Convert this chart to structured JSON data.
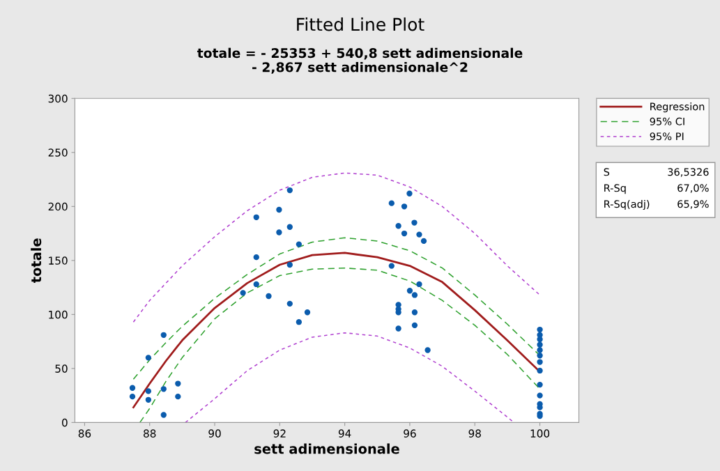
{
  "chart_data": {
    "type": "scatter",
    "title": "Fitted Line Plot",
    "subtitle": "totale = - 25353 + 540,8 sett adimensionale\n- 2,867 sett adimensionale^2",
    "xlabel": "sett adimensionale",
    "ylabel": "totale",
    "xlim": [
      85.7,
      101.2
    ],
    "ylim": [
      0,
      300
    ],
    "xticks": [
      86,
      88,
      90,
      92,
      94,
      96,
      98,
      100
    ],
    "yticks": [
      0,
      50,
      100,
      150,
      200,
      250,
      300
    ],
    "grid": false,
    "legend": "right",
    "annotations": [
      "S\t36,5326",
      "R-Sq\t67,0%",
      "R-Sq(adj)\t65,9%"
    ],
    "series": [
      {
        "marker": "circle",
        "color": "#0b5cad",
        "x": [
          87.47,
          87.47,
          87.96,
          87.96,
          87.96,
          88.43,
          88.43,
          88.43,
          88.87,
          88.87,
          90.87,
          91.28,
          91.28,
          91.28,
          91.66,
          91.98,
          91.98,
          92.31,
          92.31,
          92.31,
          92.31,
          92.59,
          92.59,
          92.85,
          95.44,
          95.44,
          95.65,
          95.65,
          95.65,
          95.65,
          95.65,
          95.83,
          95.83,
          95.99,
          96.0,
          96.14,
          96.15,
          96.15,
          96.15,
          96.29,
          96.29,
          96.43,
          96.55,
          100,
          100,
          100,
          100,
          100,
          100,
          100,
          100,
          100,
          100,
          100,
          100,
          100,
          100
        ],
        "values": [
          32,
          24,
          60,
          29,
          21,
          81,
          31,
          7,
          36,
          24,
          120,
          190,
          153,
          128,
          117,
          197,
          176,
          215,
          181,
          146,
          110,
          165,
          93,
          102,
          203,
          145,
          182,
          109,
          105,
          102,
          87,
          200,
          175,
          212,
          122,
          185,
          118,
          102,
          90,
          174,
          128,
          168,
          67,
          86,
          81,
          77,
          72,
          67,
          62,
          56,
          48,
          35,
          25,
          17,
          14,
          8,
          6
        ]
      },
      {
        "type": "line",
        "name": "Regression",
        "color": "#a01c1c",
        "line_style": "solid",
        "x": [
          87.5,
          88,
          88.5,
          89,
          90,
          91,
          92,
          93,
          94,
          95,
          96,
          97,
          98,
          99,
          100
        ],
        "values": [
          14,
          36,
          57,
          76,
          106,
          129,
          146,
          155,
          157,
          153,
          145,
          130,
          104,
          76,
          47
        ]
      },
      {
        "type": "line",
        "name": "95% CI",
        "color": "#2ca02c",
        "line_style": "dashed",
        "x": [
          87.5,
          88,
          88.5,
          89,
          90,
          91,
          92,
          93,
          94,
          95,
          96,
          97,
          98,
          99,
          100
        ],
        "values": [
          40,
          58,
          74,
          89,
          115,
          137,
          156,
          167,
          171,
          168,
          159,
          143,
          118,
          91,
          62
        ]
      },
      {
        "type": "line",
        "color": "#2ca02c",
        "line_style": "dashed",
        "x": [
          87.7,
          88,
          88.5,
          89,
          90,
          91,
          92,
          93,
          94,
          95,
          96,
          97,
          98,
          99,
          100
        ],
        "values": [
          0,
          13,
          38,
          60,
          96,
          120,
          136,
          142,
          143,
          141,
          131,
          113,
          90,
          63,
          31
        ]
      },
      {
        "type": "line",
        "name": "95% PI",
        "color": "#b040d0",
        "line_style": "dotted",
        "x": [
          87.5,
          88,
          89,
          90,
          91,
          92,
          93,
          94,
          95,
          96,
          97,
          98,
          99,
          100
        ],
        "values": [
          93,
          113,
          145,
          172,
          196,
          215,
          227,
          231,
          229,
          218,
          200,
          175,
          145,
          118
        ]
      },
      {
        "type": "line",
        "color": "#b040d0",
        "line_style": "dotted",
        "x": [
          89.1,
          90,
          91,
          92,
          93,
          94,
          95,
          96,
          97,
          98,
          99,
          99.2
        ],
        "values": [
          0,
          22,
          48,
          67,
          79,
          83,
          80,
          69,
          52,
          29,
          5,
          0
        ]
      }
    ]
  }
}
